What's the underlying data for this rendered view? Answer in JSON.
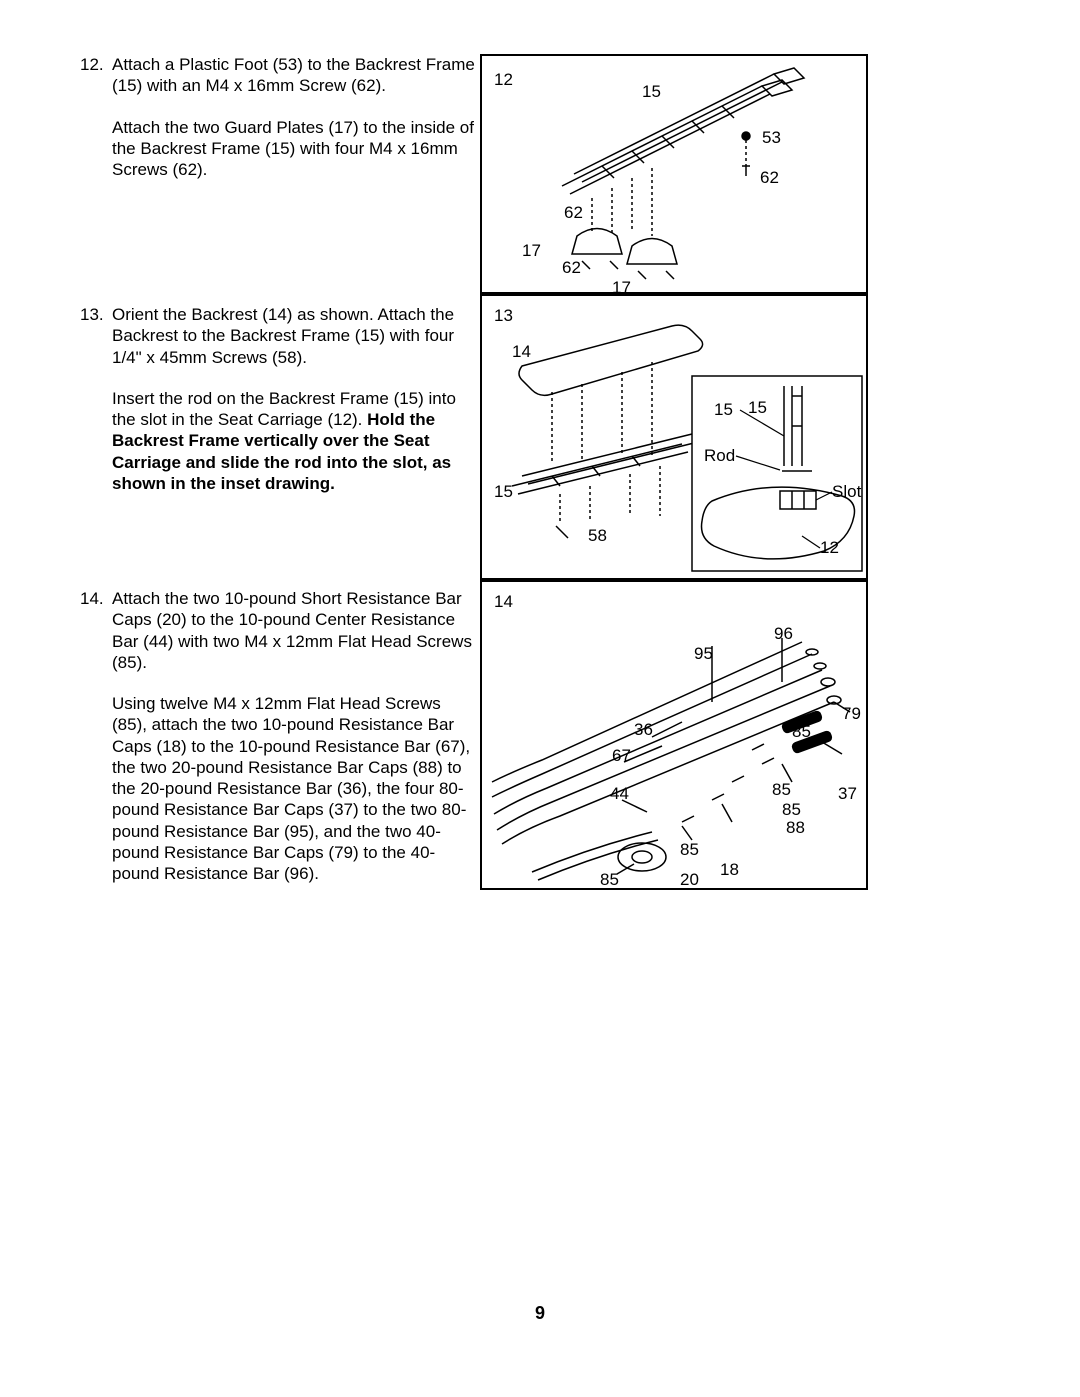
{
  "page_number": "9",
  "steps": [
    {
      "number": "12.",
      "paragraphs": [
        "Attach a Plastic Foot (53) to the Backrest Frame (15) with an M4 x 16mm Screw (62).",
        "Attach the two Guard Plates (17) to the inside of the Backrest Frame (15) with four M4 x 16mm Screws (62)."
      ]
    },
    {
      "number": "13.",
      "paragraphs": [
        "Orient the Backrest (14) as shown. Attach the Backrest to the Backrest Frame (15) with four 1/4\" x 45mm Screws (58).",
        "Insert the rod on the Backrest Frame (15) into the slot in the Seat Carriage (12). <b>Hold the Backrest Frame vertically over the Seat Carriage and slide the rod into the slot, as shown in the inset drawing.</b>"
      ]
    },
    {
      "number": "14.",
      "paragraphs": [
        "Attach the two 10-pound Short Resistance Bar Caps (20) to the 10-pound Center Resistance Bar (44) with two M4 x 12mm Flat Head Screws (85).",
        "Using twelve M4 x 12mm Flat Head Screws (85), attach the two 10-pound Resistance Bar Caps (18) to the 10-pound Resistance Bar (67), the two 20-pound Resistance Bar Caps (88) to the 20-pound Resistance Bar (36), the four 80-pound Resistance Bar Caps (37) to the two 80-pound Resistance Bar (95), and the two 40-pound Resistance Bar Caps (79) to the 40-pound Resistance Bar (96)."
      ]
    }
  ],
  "diagrams": {
    "d12": {
      "step_label": "12",
      "callouts": [
        "15",
        "53",
        "62",
        "62",
        "17",
        "62",
        "17"
      ]
    },
    "d13": {
      "step_label": "13",
      "callouts": [
        "14",
        "15",
        "15",
        "58",
        "Rod",
        "Slot",
        "12",
        "15"
      ]
    },
    "d14": {
      "step_label": "14",
      "callouts": [
        "96",
        "95",
        "79",
        "36",
        "85",
        "67",
        "37",
        "44",
        "85",
        "85",
        "88",
        "85",
        "18",
        "20",
        "85"
      ]
    }
  },
  "style": {
    "font_size_body": 17,
    "font_size_label": 17,
    "line_color": "#000000",
    "background": "#ffffff",
    "border_width": 2
  }
}
